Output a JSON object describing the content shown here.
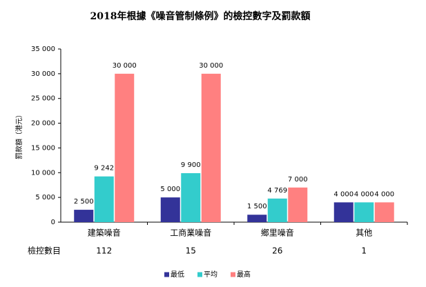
{
  "chart_data": {
    "type": "bar",
    "title": "2018年根據《噪音管制條例》的檢控數字及罰款額",
    "y_label": "罰款額（港元）",
    "categories": [
      "建築噪音",
      "工商業噪音",
      "鄉里噪音",
      "其他"
    ],
    "series": [
      {
        "name": "最低",
        "color": "#333399",
        "values": [
          2500,
          5000,
          1500,
          4000
        ],
        "value_labels": [
          "2 500",
          "5 000",
          "1 500",
          "4 000"
        ]
      },
      {
        "name": "平均",
        "color": "#33cccc",
        "values": [
          9242,
          9900,
          4769,
          4000
        ],
        "value_labels": [
          "9 242",
          "9 900",
          "4 769",
          "4 000"
        ]
      },
      {
        "name": "最高",
        "color": "#ff8080",
        "values": [
          30000,
          30000,
          7000,
          4000
        ],
        "value_labels": [
          "30 000",
          "30 000",
          "7 000",
          "4 000"
        ]
      }
    ],
    "ylim": [
      0,
      35000
    ],
    "yticks": [
      0,
      {
        "value": 5000,
        "label": "5 000"
      },
      {
        "value": 10000,
        "label": "10 000"
      },
      {
        "value": 15000,
        "label": "15 000"
      },
      {
        "value": 20000,
        "label": "20 000"
      },
      {
        "value": 25000,
        "label": "25 000"
      },
      {
        "value": 30000,
        "label": "30 000"
      },
      {
        "value": 35000,
        "label": "35 000"
      }
    ],
    "prosecutions": {
      "label": "檢控數目",
      "values": [
        112,
        15,
        26,
        1
      ]
    },
    "legend": "bottom"
  }
}
